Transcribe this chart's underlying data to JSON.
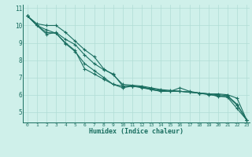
{
  "xlabel": "Humidex (Indice chaleur)",
  "bg_color": "#cff0ea",
  "grid_color": "#b0ddd5",
  "line_color": "#1a6e60",
  "xlim": [
    -0.5,
    23.3
  ],
  "ylim": [
    4.4,
    11.2
  ],
  "yticks": [
    5,
    6,
    7,
    8,
    9,
    10,
    11
  ],
  "xticks": [
    0,
    1,
    2,
    3,
    4,
    5,
    6,
    7,
    8,
    9,
    10,
    11,
    12,
    13,
    14,
    15,
    16,
    17,
    18,
    19,
    20,
    21,
    22,
    23
  ],
  "lines": [
    {
      "x": [
        0,
        1,
        2,
        3,
        4,
        5,
        6,
        7,
        8,
        9,
        10,
        11,
        12,
        13,
        14,
        15,
        16,
        17,
        18,
        19,
        20,
        21,
        22,
        23
      ],
      "y": [
        10.55,
        10.1,
        10.0,
        10.0,
        9.6,
        9.1,
        8.6,
        8.2,
        7.5,
        7.15,
        6.6,
        6.55,
        6.5,
        6.4,
        6.3,
        6.25,
        6.2,
        6.15,
        6.1,
        6.05,
        6.05,
        6.0,
        5.8,
        4.55
      ]
    },
    {
      "x": [
        0,
        1,
        2,
        3,
        4,
        5,
        6,
        7,
        8,
        9,
        10,
        11,
        12,
        13,
        14,
        15,
        16,
        17,
        18,
        19,
        20,
        21,
        22,
        23
      ],
      "y": [
        10.55,
        10.0,
        9.5,
        9.6,
        9.2,
        8.9,
        8.3,
        7.8,
        7.45,
        7.2,
        6.5,
        6.5,
        6.45,
        6.35,
        6.25,
        6.2,
        6.2,
        6.15,
        6.1,
        6.05,
        6.0,
        5.95,
        5.45,
        4.55
      ]
    },
    {
      "x": [
        0,
        1,
        2,
        3,
        4,
        5,
        6,
        7,
        8,
        9,
        10,
        11,
        12,
        13,
        14,
        15,
        16,
        17,
        18,
        19,
        20,
        21,
        22,
        23
      ],
      "y": [
        10.55,
        10.0,
        9.75,
        9.55,
        9.0,
        8.55,
        7.5,
        7.2,
        6.9,
        6.6,
        6.4,
        6.5,
        6.4,
        6.3,
        6.2,
        6.2,
        6.4,
        6.2,
        6.1,
        6.05,
        5.9,
        5.9,
        5.4,
        4.55
      ]
    },
    {
      "x": [
        0,
        1,
        2,
        3,
        4,
        5,
        6,
        7,
        8,
        9,
        10,
        11,
        12,
        13,
        14,
        15,
        16,
        17,
        18,
        19,
        20,
        21,
        22,
        23
      ],
      "y": [
        10.55,
        10.0,
        9.6,
        9.55,
        8.95,
        8.5,
        7.8,
        7.4,
        7.0,
        6.6,
        6.5,
        6.5,
        6.45,
        6.3,
        6.2,
        6.2,
        6.2,
        6.15,
        6.1,
        6.0,
        5.95,
        5.85,
        5.2,
        4.55
      ]
    }
  ]
}
